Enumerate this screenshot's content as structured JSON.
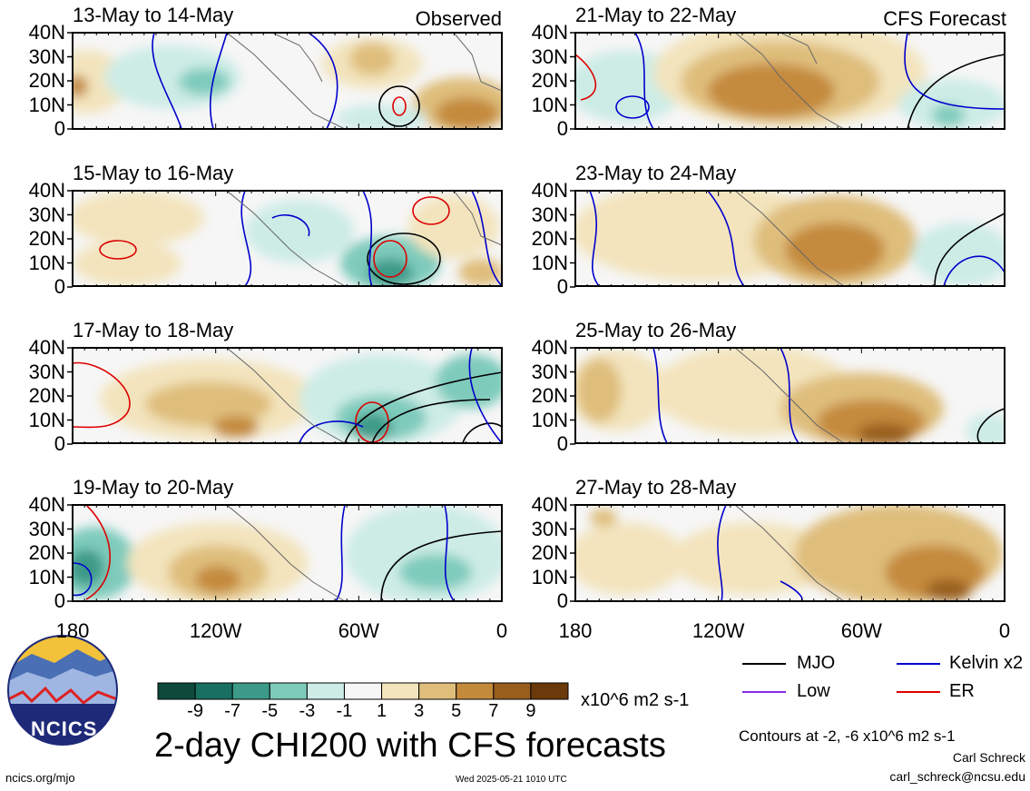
{
  "panels": [
    {
      "title": "13-May to 14-May",
      "label": "Observed"
    },
    {
      "title": "21-May to 22-May",
      "label": "CFS Forecast"
    },
    {
      "title": "15-May to 16-May",
      "label": ""
    },
    {
      "title": "23-May to 24-May",
      "label": ""
    },
    {
      "title": "17-May to 18-May",
      "label": ""
    },
    {
      "title": "25-May to 26-May",
      "label": ""
    },
    {
      "title": "19-May to 20-May",
      "label": ""
    },
    {
      "title": "27-May to 28-May",
      "label": ""
    }
  ],
  "lat_ticks": [
    "40N",
    "30N",
    "20N",
    "10N",
    "0"
  ],
  "lon_ticks": [
    "180",
    "120W",
    "60W",
    "0"
  ],
  "colorbar": {
    "labels": [
      "-9",
      "-7",
      "-5",
      "-3",
      "-1",
      "1",
      "3",
      "5",
      "7",
      "9"
    ],
    "colors": [
      "#0d4a3c",
      "#1a7060",
      "#3d9a88",
      "#7ecbbc",
      "#cdece6",
      "#f6f6f6",
      "#f3e4bd",
      "#dfbe7c",
      "#c48a3c",
      "#985e1c",
      "#6b3a0a"
    ],
    "units": "x10^6 m2 s-1"
  },
  "title": "2-day CHI200 with CFS forecasts",
  "legend": [
    {
      "label": "MJO",
      "color": "#000000"
    },
    {
      "label": "Kelvin x2",
      "color": "#0000cc"
    },
    {
      "label": "Low",
      "color": "#8a2be2"
    },
    {
      "label": "ER",
      "color": "#dd0000"
    }
  ],
  "contour_note": "Contours at -2, -6 x10^6 m2 s-1",
  "author": "Carl Schreck",
  "email": "carl_schreck@ncsu.edu",
  "website": "ncics.org/mjo",
  "timestamp": "Wed 2025-05-21 1010 UTC",
  "logo_text": "NCICS"
}
